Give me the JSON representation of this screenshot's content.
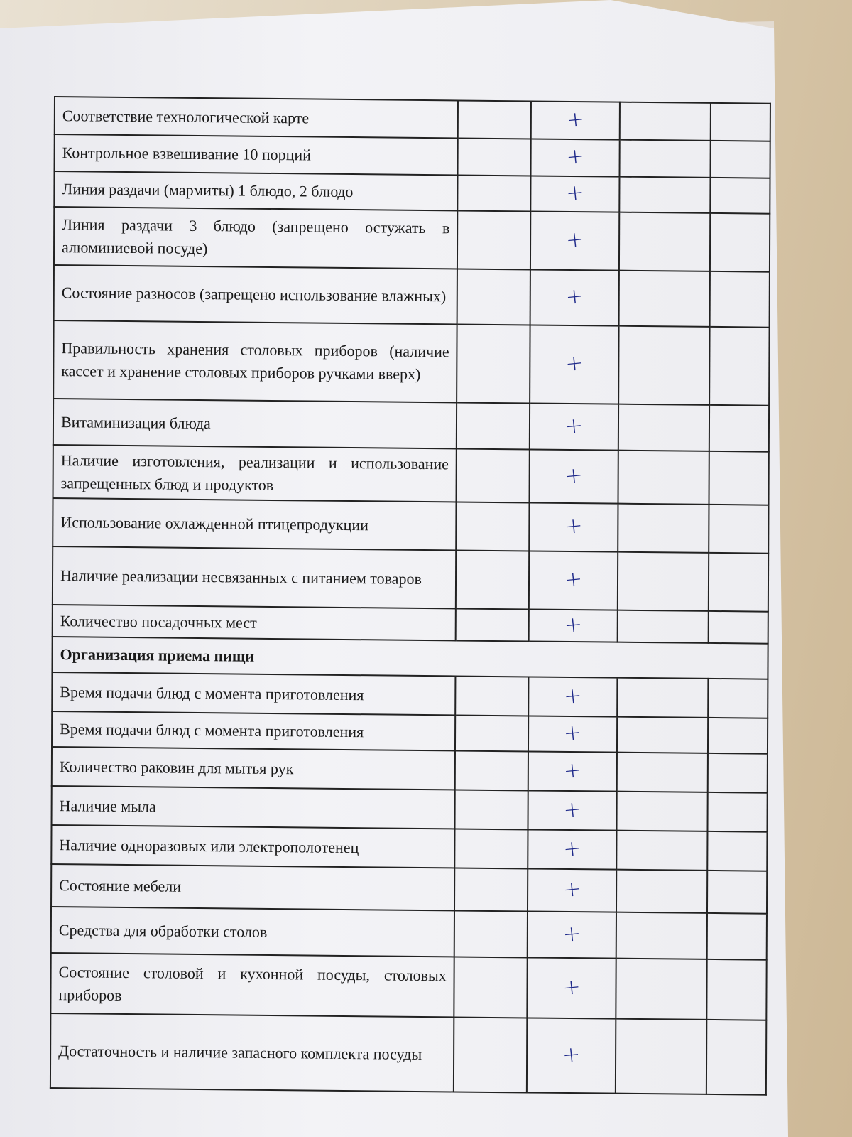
{
  "colors": {
    "ink": "#1f2a8a",
    "paper": "#f1f1f4",
    "wood": "#d9c9ad"
  },
  "rows": [
    {
      "text": "Соответствие технологической карте",
      "mark": "+",
      "h": 53
    },
    {
      "text": "Контрольное взвешивание 10 порций",
      "mark": "+",
      "h": 52
    },
    {
      "text": "Линия раздачи (мармиты) 1 блюдо, 2 блюдо",
      "mark": "+",
      "h": 50
    },
    {
      "text": "Линия раздачи 3 блюдо (запрещено остужать в алюминиевой посуде)",
      "mark": "+",
      "h": 82
    },
    {
      "text": "Состояние разносов (запрещено использование влажных)",
      "mark": "+",
      "h": 78
    },
    {
      "text": "Правильность хранения столовых приборов (наличие кассет и хранение столовых приборов ручками вверх)",
      "mark": "+",
      "h": 110
    },
    {
      "text": "Витаминизация блюда",
      "mark": "+",
      "h": 65
    },
    {
      "text": "Наличие изготовления, реализации и использование запрещенных блюд и продуктов",
      "mark": "+",
      "h": 75
    },
    {
      "text": "Использование охлажденной птицепродукции",
      "mark": "+",
      "h": 68
    },
    {
      "text": "Наличие реализации несвязанных с питанием товаров",
      "mark": "+",
      "h": 82
    },
    {
      "text": "Количество посадочных мест",
      "mark": "+",
      "h": 45
    }
  ],
  "section_title": "Организация приема пищи",
  "rows2": [
    {
      "text": "Время подачи блюд с момента приготовления",
      "mark": "+",
      "h": 55
    },
    {
      "text": "Время подачи блюд с момента приготовления",
      "mark": "+",
      "h": 50
    },
    {
      "text": "Количество раковин для мытья рук",
      "mark": "+",
      "h": 55
    },
    {
      "text": "Наличие мыла",
      "mark": "+",
      "h": 55
    },
    {
      "text": "Наличие одноразовых или электрополотенец",
      "mark": "+",
      "h": 55
    },
    {
      "text": "Состояние мебели",
      "mark": "+",
      "h": 60
    },
    {
      "text": "Средства для обработки столов",
      "mark": "+",
      "h": 65
    },
    {
      "text": "Состояние столовой и кухонной посуды, столовых приборов",
      "mark": "+",
      "h": 85
    },
    {
      "text": "Достаточность и наличие запасного комплекта посуды",
      "mark": "+",
      "h": 105
    }
  ]
}
